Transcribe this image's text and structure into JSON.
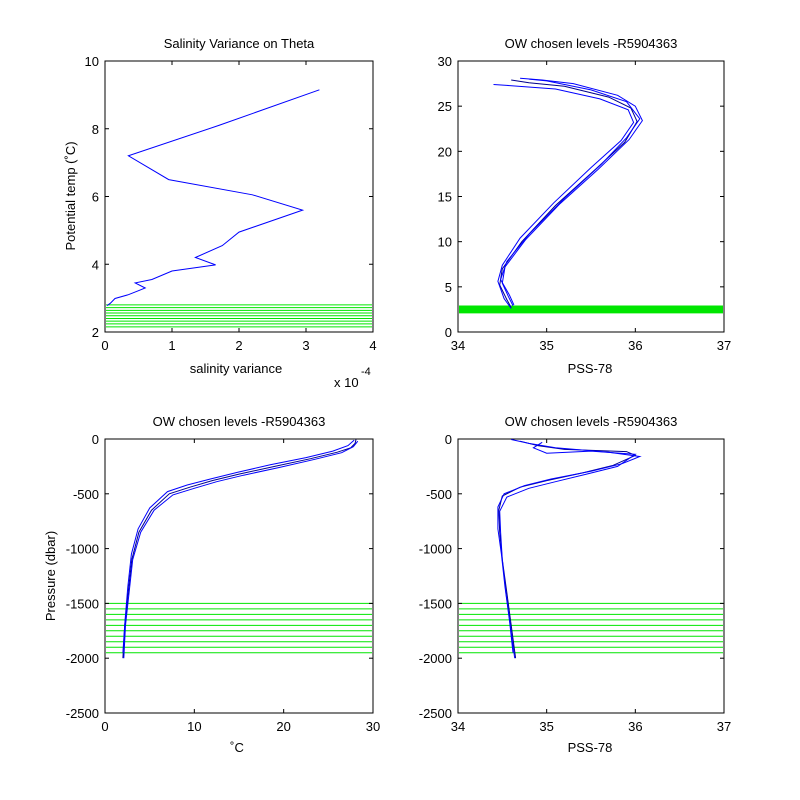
{
  "colors": {
    "profile": "#0000ff",
    "levels": "#00e600",
    "profile_dark": "#00008b",
    "axes": "#000000"
  },
  "chart_data": [
    {
      "id": "p1",
      "type": "line",
      "title": "Salinity Variance on Theta",
      "xlabel": "salinity variance",
      "ylabel": "Potential temp (˚C)",
      "xlim": [
        0,
        4
      ],
      "ylim": [
        2,
        10
      ],
      "xticks": [
        0,
        1,
        2,
        3,
        4
      ],
      "yticks": [
        2,
        4,
        6,
        8,
        10
      ],
      "x_multiplier_label": "x 10",
      "x_multiplier_exponent": "-4",
      "series": [
        {
          "points": [
            [
              3.2,
              9.15
            ],
            [
              1.7,
              8.1
            ],
            [
              0.35,
              7.2
            ],
            [
              0.95,
              6.5
            ],
            [
              2.2,
              6.05
            ],
            [
              2.95,
              5.6
            ],
            [
              2.0,
              4.95
            ],
            [
              1.75,
              4.55
            ],
            [
              1.35,
              4.2
            ],
            [
              1.65,
              3.98
            ],
            [
              1.0,
              3.8
            ],
            [
              0.7,
              3.55
            ],
            [
              0.45,
              3.45
            ],
            [
              0.6,
              3.3
            ],
            [
              0.5,
              3.22
            ],
            [
              0.35,
              3.1
            ],
            [
              0.15,
              2.99
            ],
            [
              0.08,
              2.85
            ],
            [
              0.03,
              2.78
            ]
          ]
        }
      ],
      "hlines": [
        2.15,
        2.24,
        2.32,
        2.4,
        2.48,
        2.56,
        2.64,
        2.72,
        2.8
      ]
    },
    {
      "id": "p2",
      "type": "line",
      "title": "OW chosen levels -R5904363",
      "xlabel": "PSS-78",
      "ylabel": "",
      "xlim": [
        34,
        37
      ],
      "ylim": [
        0,
        30
      ],
      "xticks": [
        34,
        35,
        36,
        37
      ],
      "yticks": [
        0,
        5,
        10,
        15,
        20,
        25,
        30
      ],
      "series": [
        {
          "points": [
            [
              34.6,
              2.7
            ],
            [
              34.55,
              3.6
            ],
            [
              34.47,
              5.2
            ],
            [
              34.5,
              7
            ],
            [
              34.72,
              10
            ],
            [
              35.1,
              14
            ],
            [
              35.55,
              18
            ],
            [
              35.88,
              21
            ],
            [
              36.02,
              23.3
            ],
            [
              35.95,
              24.8
            ],
            [
              35.7,
              26
            ],
            [
              35.2,
              27.2
            ],
            [
              34.8,
              27.6
            ],
            [
              34.6,
              27.9
            ]
          ]
        },
        {
          "points": [
            [
              34.62,
              2.9
            ],
            [
              34.57,
              3.9
            ],
            [
              34.5,
              5.4
            ],
            [
              34.53,
              7.2
            ],
            [
              34.76,
              10.2
            ],
            [
              35.15,
              14.2
            ],
            [
              35.58,
              18
            ],
            [
              35.93,
              21.3
            ],
            [
              36.08,
              23.4
            ],
            [
              36.0,
              25
            ],
            [
              35.8,
              26.2
            ],
            [
              35.3,
              27.5
            ],
            [
              34.95,
              27.9
            ],
            [
              34.7,
              28.1
            ]
          ]
        },
        {
          "points": [
            [
              34.6,
              2.6
            ],
            [
              34.52,
              3.7
            ],
            [
              34.45,
              5.6
            ],
            [
              34.5,
              7.4
            ],
            [
              34.7,
              10.4
            ],
            [
              35.08,
              14.3
            ],
            [
              35.5,
              18.2
            ],
            [
              35.84,
              21.2
            ],
            [
              35.98,
              23.2
            ],
            [
              35.92,
              24.6
            ],
            [
              35.6,
              25.8
            ],
            [
              35.1,
              26.9
            ],
            [
              34.55,
              27.3
            ],
            [
              34.4,
              27.4
            ]
          ]
        },
        {
          "points": [
            [
              34.63,
              3.0
            ],
            [
              34.58,
              4.1
            ],
            [
              34.48,
              5.8
            ],
            [
              34.55,
              7.8
            ],
            [
              34.8,
              10.8
            ],
            [
              35.2,
              14.8
            ],
            [
              35.62,
              18.6
            ],
            [
              35.9,
              21.5
            ],
            [
              36.05,
              23.6
            ],
            [
              35.9,
              25.5
            ],
            [
              35.5,
              26.8
            ],
            [
              35.0,
              27.8
            ],
            [
              34.8,
              28.0
            ]
          ]
        }
      ],
      "hlines": [
        2.2,
        2.35,
        2.5,
        2.65,
        2.8
      ]
    },
    {
      "id": "p3",
      "type": "line",
      "title": "OW chosen levels -R5904363",
      "xlabel": "˚C",
      "ylabel": "Pressure (dbar)",
      "xlim": [
        0,
        30
      ],
      "ylim": [
        -2500,
        0
      ],
      "xticks": [
        0,
        10,
        20,
        30
      ],
      "yticks": [
        -2500,
        -2000,
        -1500,
        -1000,
        -500,
        0
      ],
      "series": [
        {
          "points": [
            [
              2.0,
              -2000
            ],
            [
              2.2,
              -1700
            ],
            [
              2.6,
              -1400
            ],
            [
              3.0,
              -1100
            ],
            [
              3.8,
              -850
            ],
            [
              5.2,
              -650
            ],
            [
              7.2,
              -500
            ],
            [
              9.5,
              -440
            ],
            [
              12,
              -380
            ],
            [
              15,
              -320
            ],
            [
              19,
              -250
            ],
            [
              23,
              -180
            ],
            [
              26,
              -120
            ],
            [
              27.5,
              -80
            ],
            [
              28,
              -40
            ],
            [
              28.1,
              -5
            ]
          ]
        },
        {
          "points": [
            [
              2.1,
              -2000
            ],
            [
              2.3,
              -1700
            ],
            [
              2.7,
              -1400
            ],
            [
              3.1,
              -1100
            ],
            [
              4.0,
              -850
            ],
            [
              5.5,
              -650
            ],
            [
              7.6,
              -510
            ],
            [
              10,
              -450
            ],
            [
              12.5,
              -390
            ],
            [
              15.5,
              -330
            ],
            [
              19.5,
              -260
            ],
            [
              23.5,
              -185
            ],
            [
              26.5,
              -125
            ],
            [
              27.8,
              -70
            ],
            [
              28.3,
              -20
            ]
          ]
        },
        {
          "points": [
            [
              2.0,
              -1950
            ],
            [
              2.25,
              -1650
            ],
            [
              2.55,
              -1350
            ],
            [
              2.95,
              -1050
            ],
            [
              3.7,
              -820
            ],
            [
              5.0,
              -630
            ],
            [
              7.0,
              -480
            ],
            [
              9.2,
              -420
            ],
            [
              11.8,
              -365
            ],
            [
              14.8,
              -305
            ],
            [
              18.5,
              -235
            ],
            [
              22.5,
              -170
            ],
            [
              25.5,
              -110
            ],
            [
              27.2,
              -60
            ],
            [
              27.9,
              -10
            ]
          ]
        }
      ],
      "hlines": [
        -1500,
        -1550,
        -1600,
        -1650,
        -1700,
        -1750,
        -1800,
        -1850,
        -1900,
        -1950
      ]
    },
    {
      "id": "p4",
      "type": "line",
      "title": "OW chosen levels -R5904363",
      "xlabel": "PSS-78",
      "ylabel": "",
      "xlim": [
        34,
        37
      ],
      "ylim": [
        -2500,
        0
      ],
      "xticks": [
        34,
        35,
        36,
        37
      ],
      "yticks": [
        -2500,
        -2000,
        -1500,
        -1000,
        -500,
        0
      ],
      "series": [
        {
          "points": [
            [
              34.65,
              -2000
            ],
            [
              34.6,
              -1700
            ],
            [
              34.55,
              -1400
            ],
            [
              34.5,
              -1100
            ],
            [
              34.47,
              -850
            ],
            [
              34.46,
              -650
            ],
            [
              34.5,
              -520
            ],
            [
              34.7,
              -440
            ],
            [
              35.0,
              -380
            ],
            [
              35.4,
              -310
            ],
            [
              35.75,
              -240
            ],
            [
              36.0,
              -150
            ],
            [
              35.9,
              -115
            ],
            [
              35.2,
              -95
            ],
            [
              34.9,
              -60
            ],
            [
              34.7,
              -20
            ]
          ]
        },
        {
          "points": [
            [
              34.62,
              -1950
            ],
            [
              34.58,
              -1650
            ],
            [
              34.53,
              -1350
            ],
            [
              34.49,
              -1050
            ],
            [
              34.45,
              -820
            ],
            [
              34.45,
              -620
            ],
            [
              34.52,
              -500
            ],
            [
              34.75,
              -425
            ],
            [
              35.05,
              -365
            ],
            [
              35.5,
              -295
            ],
            [
              35.85,
              -225
            ],
            [
              36.05,
              -160
            ],
            [
              35.7,
              -120
            ],
            [
              35.1,
              -80
            ],
            [
              34.8,
              -40
            ],
            [
              34.6,
              -5
            ]
          ]
        },
        {
          "points": [
            [
              34.64,
              -2000
            ],
            [
              34.59,
              -1700
            ],
            [
              34.54,
              -1400
            ],
            [
              34.5,
              -1100
            ],
            [
              34.48,
              -850
            ],
            [
              34.47,
              -660
            ],
            [
              34.55,
              -530
            ],
            [
              34.8,
              -450
            ],
            [
              35.1,
              -390
            ],
            [
              35.45,
              -320
            ],
            [
              35.8,
              -250
            ],
            [
              36.0,
              -140
            ],
            [
              35.5,
              -110
            ],
            [
              35.0,
              -130
            ],
            [
              34.85,
              -80
            ],
            [
              34.95,
              -30
            ]
          ]
        }
      ],
      "hlines": [
        -1500,
        -1550,
        -1600,
        -1650,
        -1700,
        -1750,
        -1800,
        -1850,
        -1900,
        -1950
      ]
    }
  ]
}
